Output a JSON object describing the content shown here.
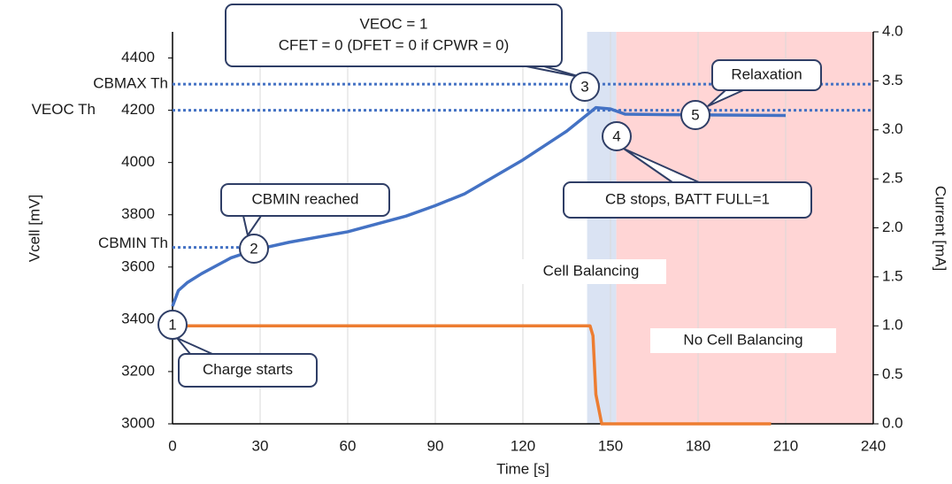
{
  "chart_data": {
    "type": "line",
    "xlabel": "Time [s]",
    "ylabel": "Vcell [mV]",
    "y2label": "Current [mA]",
    "xlim": [
      0,
      240
    ],
    "xticks": [
      0,
      30,
      60,
      90,
      120,
      150,
      180,
      210,
      240
    ],
    "ylim": [
      3000,
      4500
    ],
    "yticks": [
      3000,
      3200,
      3400,
      3600,
      3800,
      4000,
      4200,
      4400
    ],
    "y2lim": [
      0,
      4
    ],
    "y2ticks": [
      {
        "value": 0,
        "label": "0.0"
      },
      0.5,
      {
        "value": 1,
        "label": "1.0"
      },
      1.5,
      {
        "value": 2,
        "label": "2.0"
      },
      2.5,
      {
        "value": 3,
        "label": "3.0"
      },
      3.5,
      {
        "value": 4,
        "label": "4.0"
      }
    ],
    "series": [
      {
        "color": "#4472c4",
        "x": [
          0,
          2,
          5,
          10,
          20,
          28,
          40,
          60,
          80,
          90,
          100,
          120,
          135,
          145,
          150,
          155,
          170,
          210
        ],
        "values": [
          3450,
          3510,
          3540,
          3575,
          3635,
          3665,
          3695,
          3735,
          3795,
          3835,
          3880,
          4010,
          4120,
          4210,
          4205,
          4185,
          4183,
          4180
        ]
      },
      {
        "color": "#ed7d31",
        "axis": "y2",
        "x": [
          0,
          143,
          144,
          145,
          147,
          205
        ],
        "values": [
          1.0,
          1.0,
          0.9,
          0.3,
          0.0,
          0.0
        ]
      }
    ],
    "thresholds": [
      {
        "label": "CBMAX Th",
        "value": 4300
      },
      {
        "label": "VEOC Th",
        "value": 4200
      },
      {
        "label": "CBMIN Th",
        "value": 3675
      }
    ],
    "regions": [
      {
        "label": "Cell Balancing",
        "range": [
          142,
          152
        ],
        "color": "#dae3f3"
      },
      {
        "label": "No Cell Balancing",
        "range": [
          152,
          240
        ],
        "color": "#ffd5d5"
      }
    ],
    "callouts": [
      {
        "lines": [
          "VEOC = 1",
          "CFET = 0 (DFET = 0 if CPWR = 0)"
        ]
      },
      {
        "lines": [
          "CBMIN reached"
        ]
      },
      {
        "lines": [
          "Relaxation"
        ]
      },
      {
        "lines": [
          "CB stops, BATT FULL=1"
        ]
      },
      {
        "lines": [
          "Charge starts"
        ]
      }
    ],
    "markers": [
      "1",
      "2",
      "3",
      "4",
      "5"
    ]
  }
}
